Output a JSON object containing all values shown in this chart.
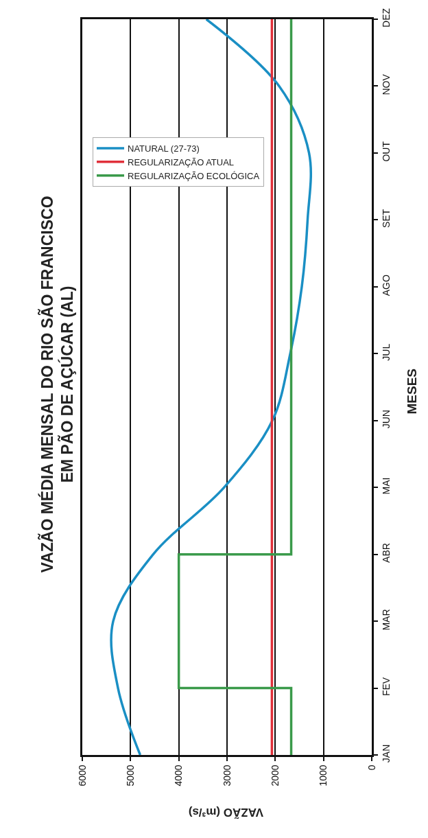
{
  "chart_data": {
    "type": "line",
    "orientation": "horizontal",
    "title": "VAZÃO MÉDIA MENSAL DO RIO SÃO FRANCISCO\nEM PÃO DE AÇÚCAR (AL)",
    "xlabel": "VAZÃO (m³/s)",
    "ylabel": "MESES",
    "categories": [
      "DEZ",
      "NOV",
      "OUT",
      "SET",
      "AGO",
      "JUL",
      "JUN",
      "MAI",
      "ABR",
      "MAR",
      "FEV",
      "JAN"
    ],
    "series": [
      {
        "name": "NATURAL (27-73)",
        "color": "#1a8fc4",
        "values": [
          3430,
          1920,
          1300,
          1330,
          1450,
          1690,
          2060,
          3060,
          4530,
          5360,
          5260,
          4800
        ]
      },
      {
        "name": "REGULARIZAÇÃO ATUAL",
        "color": "#e0303a",
        "values": [
          2070,
          2070,
          2070,
          2070,
          2070,
          2070,
          2070,
          2070,
          2070,
          2070,
          2070,
          2070
        ]
      },
      {
        "name": "REGULARIZAÇÃO ECOLÓGICA",
        "type": "step",
        "color": "#3a9a4a",
        "values": [
          1670,
          1670,
          1670,
          1670,
          1670,
          1670,
          1670,
          1670,
          1670,
          4000,
          4000,
          1670
        ]
      }
    ],
    "xlim": [
      6000,
      0
    ],
    "xticks": [
      6000,
      5000,
      4000,
      3000,
      2000,
      1000,
      0
    ],
    "grid": "x",
    "legend": "top left",
    "marker": "none",
    "line_style": "solid"
  }
}
